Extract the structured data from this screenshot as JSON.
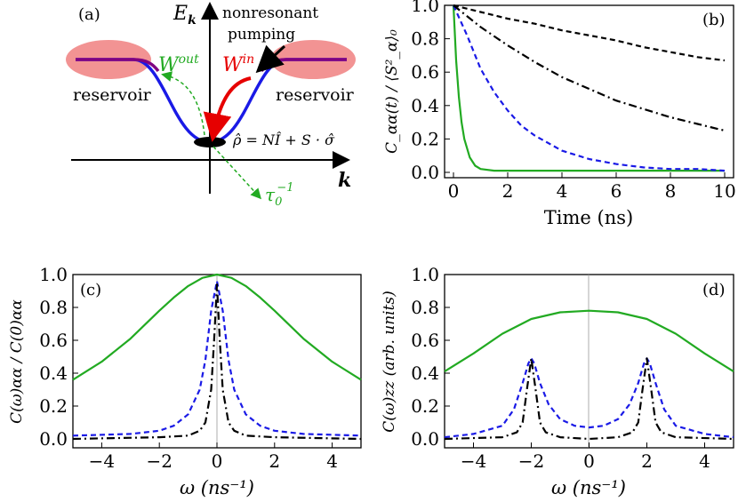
{
  "colors": {
    "green": "#22aa22",
    "blue": "#1a1ae6",
    "black": "#000000",
    "red": "#e60000",
    "reservoir": "#f08080"
  },
  "panel_a": {
    "label": "(a)",
    "energy_axis": "E",
    "energy_axis_sub": "k",
    "k_axis": "k",
    "pump_label_line1": "nonresonant",
    "pump_label_line2": "pumping",
    "w_out": "W",
    "w_out_sup": "out",
    "w_in": "W",
    "w_in_sup": "in",
    "reservoir_left": "reservoir",
    "reservoir_right": "reservoir",
    "density_matrix": "ρ̂ = NÎ + S · σ̂",
    "tau": "τ",
    "tau_sub": "0",
    "tau_sup": "−1"
  },
  "chart_data": [
    {
      "panel": "(b)",
      "type": "line",
      "xlabel": "Time (ns)",
      "ylabel": "C_αα(t) / ⟨S²_α⟩₀",
      "xlim": [
        0,
        10
      ],
      "ylim": [
        0,
        1
      ],
      "xticks": [
        "0",
        "2",
        "4",
        "6",
        "8",
        "10"
      ],
      "yticks": [
        "0.0",
        "0.2",
        "0.4",
        "0.6",
        "0.8",
        "1.0"
      ],
      "series": [
        {
          "style": "solid",
          "color": "green",
          "x": [
            0,
            0.1,
            0.2,
            0.3,
            0.4,
            0.6,
            0.8,
            1.0,
            1.5,
            2,
            4,
            6,
            8,
            10
          ],
          "values": [
            1.0,
            0.67,
            0.45,
            0.3,
            0.2,
            0.09,
            0.04,
            0.02,
            0.01,
            0.01,
            0.01,
            0.01,
            0.01,
            0.01
          ]
        },
        {
          "style": "dashed",
          "color": "blue",
          "x": [
            0,
            0.5,
            1,
            1.5,
            2,
            2.5,
            3,
            4,
            5,
            6,
            7,
            8,
            9,
            10
          ],
          "values": [
            1.0,
            0.82,
            0.62,
            0.48,
            0.37,
            0.28,
            0.22,
            0.13,
            0.08,
            0.05,
            0.03,
            0.02,
            0.02,
            0.01
          ]
        },
        {
          "style": "dashdot",
          "color": "black",
          "x": [
            0,
            1,
            2,
            3,
            4,
            5,
            6,
            7,
            8,
            9,
            10
          ],
          "values": [
            1.0,
            0.87,
            0.76,
            0.66,
            0.57,
            0.5,
            0.43,
            0.38,
            0.33,
            0.29,
            0.25
          ]
        },
        {
          "style": "dashed",
          "color": "black",
          "x": [
            0,
            1,
            2,
            3,
            4,
            5,
            6,
            7,
            8,
            9,
            10
          ],
          "values": [
            1.0,
            0.96,
            0.92,
            0.89,
            0.85,
            0.82,
            0.79,
            0.75,
            0.72,
            0.69,
            0.67
          ]
        }
      ]
    },
    {
      "panel": "(c)",
      "type": "line",
      "xlabel": "ω (ns⁻¹)",
      "ylabel": "C(ω)αα / C(0)αα",
      "xlim": [
        -5,
        5
      ],
      "ylim": [
        0,
        1
      ],
      "xticks": [
        "−4",
        "−2",
        "0",
        "2",
        "4"
      ],
      "yticks": [
        "0.0",
        "0.2",
        "0.4",
        "0.6",
        "0.8",
        "1.0"
      ],
      "series": [
        {
          "style": "solid",
          "color": "green",
          "x": [
            -5,
            -4,
            -3,
            -2,
            -1.5,
            -1,
            -0.5,
            0,
            0.5,
            1,
            1.5,
            2,
            3,
            4,
            5
          ],
          "values": [
            0.36,
            0.47,
            0.61,
            0.78,
            0.86,
            0.93,
            0.98,
            1.0,
            0.98,
            0.93,
            0.86,
            0.78,
            0.61,
            0.47,
            0.36
          ]
        },
        {
          "style": "dashed",
          "color": "blue",
          "x": [
            -5,
            -3,
            -2,
            -1.5,
            -1,
            -0.6,
            -0.4,
            -0.2,
            0,
            0.2,
            0.4,
            0.6,
            1,
            1.5,
            2,
            3,
            5
          ],
          "values": [
            0.02,
            0.03,
            0.05,
            0.08,
            0.15,
            0.3,
            0.48,
            0.78,
            0.96,
            0.78,
            0.48,
            0.3,
            0.15,
            0.08,
            0.05,
            0.03,
            0.02
          ]
        },
        {
          "style": "dashdot",
          "color": "black",
          "x": [
            -5,
            -2,
            -1,
            -0.6,
            -0.4,
            -0.2,
            -0.1,
            0,
            0.1,
            0.2,
            0.4,
            0.6,
            1,
            2,
            5
          ],
          "values": [
            0.0,
            0.01,
            0.02,
            0.05,
            0.1,
            0.3,
            0.6,
            0.94,
            0.6,
            0.3,
            0.1,
            0.05,
            0.02,
            0.01,
            0.0
          ]
        }
      ]
    },
    {
      "panel": "(d)",
      "type": "line",
      "xlabel": "ω (ns⁻¹)",
      "ylabel": "C(ω)zz (arb. units)",
      "xlim": [
        -5,
        5
      ],
      "ylim": [
        0,
        1
      ],
      "xticks": [
        "−4",
        "−2",
        "0",
        "2",
        "4"
      ],
      "yticks": [
        "0.0",
        "0.2",
        "0.4",
        "0.6",
        "0.8",
        "1.0"
      ],
      "series": [
        {
          "style": "solid",
          "color": "green",
          "x": [
            -5,
            -4,
            -3,
            -2,
            -1,
            0,
            1,
            2,
            3,
            4,
            5
          ],
          "values": [
            0.41,
            0.52,
            0.64,
            0.73,
            0.77,
            0.78,
            0.77,
            0.73,
            0.64,
            0.52,
            0.41
          ]
        },
        {
          "style": "dashed",
          "color": "blue",
          "x": [
            -5,
            -4,
            -3,
            -2.6,
            -2.3,
            -2.1,
            -2,
            -1.9,
            -1.7,
            -1.4,
            -1,
            -0.5,
            0,
            0.5,
            1,
            1.4,
            1.7,
            1.9,
            2,
            2.1,
            2.3,
            2.6,
            3,
            4,
            5
          ],
          "values": [
            0.01,
            0.03,
            0.08,
            0.18,
            0.34,
            0.46,
            0.49,
            0.46,
            0.34,
            0.21,
            0.12,
            0.08,
            0.07,
            0.08,
            0.12,
            0.21,
            0.34,
            0.46,
            0.49,
            0.46,
            0.34,
            0.18,
            0.08,
            0.03,
            0.01
          ]
        },
        {
          "style": "dashdot",
          "color": "black",
          "x": [
            -5,
            -3,
            -2.5,
            -2.3,
            -2.15,
            -2,
            -1.85,
            -1.7,
            -1.5,
            -1,
            0,
            1,
            1.5,
            1.7,
            1.85,
            2,
            2.15,
            2.3,
            2.5,
            3,
            5
          ],
          "values": [
            0.0,
            0.01,
            0.04,
            0.1,
            0.3,
            0.49,
            0.3,
            0.1,
            0.04,
            0.01,
            0.0,
            0.01,
            0.04,
            0.1,
            0.3,
            0.49,
            0.3,
            0.1,
            0.04,
            0.01,
            0.0
          ]
        }
      ]
    }
  ]
}
